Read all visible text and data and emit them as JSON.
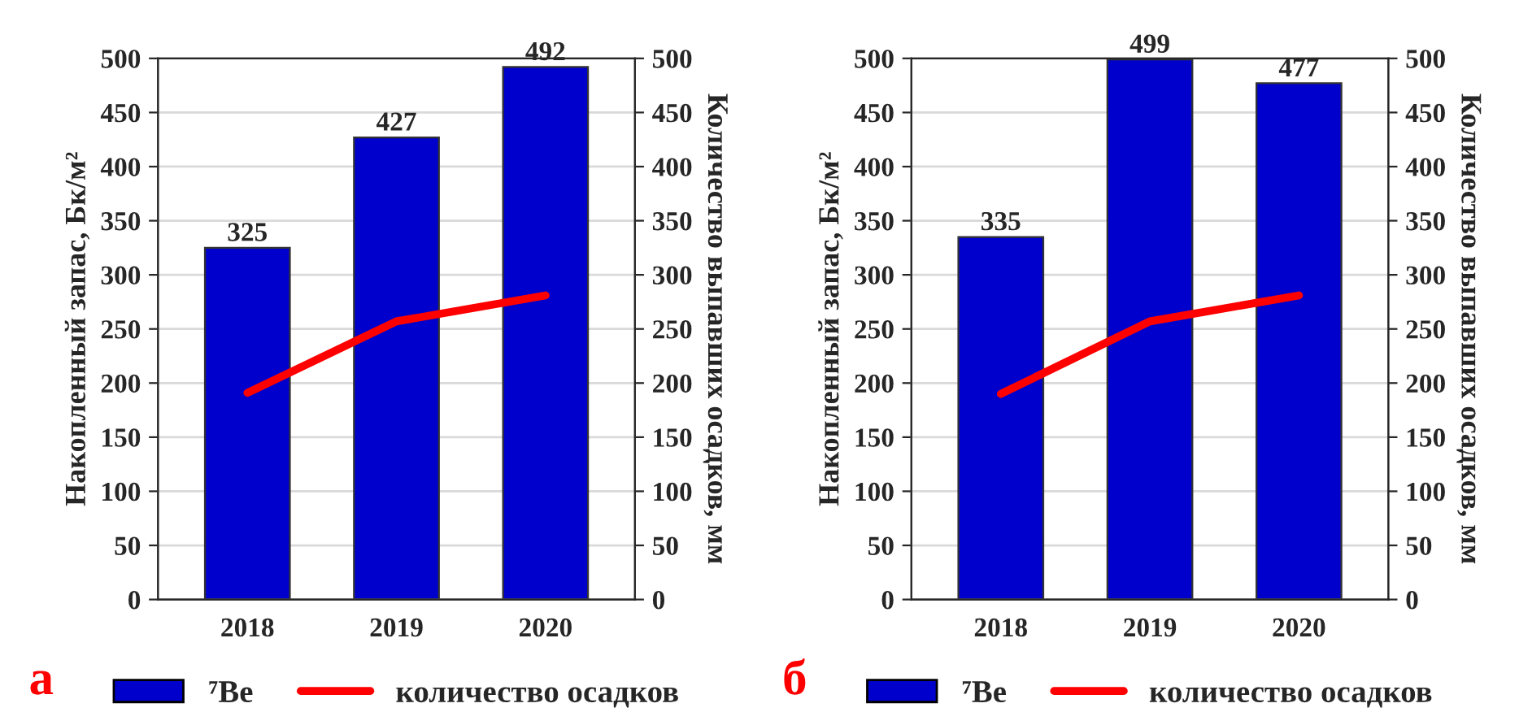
{
  "chart_data": [
    {
      "type": "bar",
      "categories": [
        "2018",
        "2019",
        "2020"
      ],
      "ylabel": "Накопленный запас, Бк/м²",
      "y2label": "Количество выпавших осадков, мм",
      "ylim": [
        0,
        500
      ],
      "yticks": [
        0,
        50,
        100,
        150,
        200,
        250,
        300,
        350,
        400,
        450,
        500
      ],
      "y2lim": [
        0,
        500
      ],
      "y2ticks": [
        0,
        50,
        100,
        150,
        200,
        250,
        300,
        350,
        400,
        450,
        500
      ],
      "grid": "y",
      "legend": "bottom",
      "annotations": [
        "а"
      ],
      "series": [
        {
          "name": "⁷Be",
          "color": "#0000cc",
          "values": [
            325,
            427,
            492
          ],
          "value_labels": [
            "325",
            "427",
            "492"
          ]
        },
        {
          "name": "количество осадков",
          "type": "line",
          "color": "#ff0000",
          "values": [
            191,
            257,
            281
          ]
        }
      ]
    },
    {
      "type": "bar",
      "categories": [
        "2018",
        "2019",
        "2020"
      ],
      "ylabel": "Накопленный запас, Бк/м²",
      "y2label": "Количество выпавших осадков, мм",
      "ylim": [
        0,
        500
      ],
      "yticks": [
        0,
        50,
        100,
        150,
        200,
        250,
        300,
        350,
        400,
        450,
        500
      ],
      "y2lim": [
        0,
        500
      ],
      "y2ticks": [
        0,
        50,
        100,
        150,
        200,
        250,
        300,
        350,
        400,
        450,
        500
      ],
      "grid": "y",
      "legend": "bottom",
      "annotations": [
        "б"
      ],
      "series": [
        {
          "name": "⁷Be",
          "color": "#0000cc",
          "values": [
            335,
            499,
            477
          ],
          "value_labels": [
            "335",
            "499",
            "477"
          ]
        },
        {
          "name": "количество осадков",
          "type": "line",
          "color": "#ff0000",
          "values": [
            190,
            257,
            281
          ]
        }
      ]
    }
  ]
}
